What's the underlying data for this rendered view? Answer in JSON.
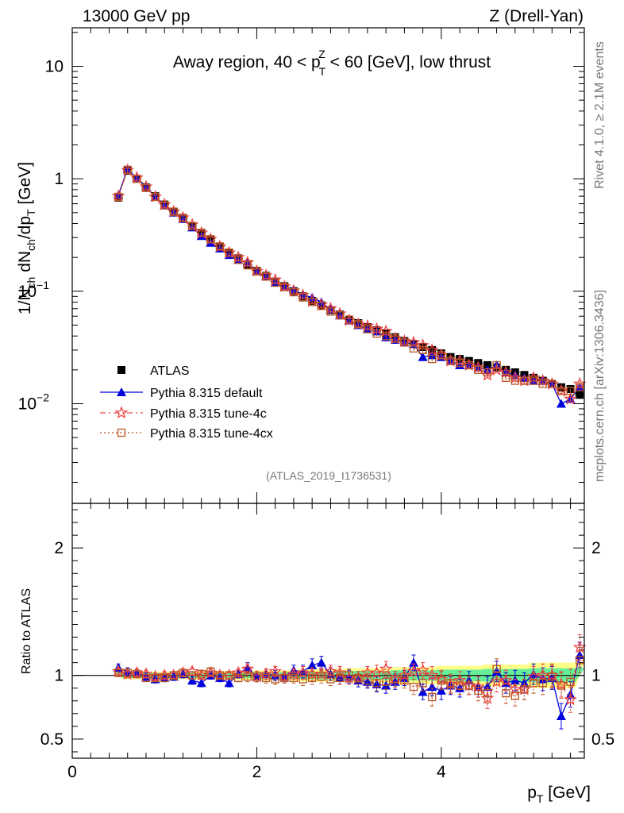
{
  "header": {
    "left": "13000 GeV pp",
    "right": "Z (Drell-Yan)"
  },
  "side_labels": {
    "rivet": "Rivet 4.1.0, ≥ 2.1M events",
    "mcplots": "mcplots.cern.ch [arXiv:1306.3436]"
  },
  "main_title": {
    "pre": "Away region, 40 < p",
    "sup": "Z",
    "sub": "T",
    "post": " < 60 [GeV], low thrust"
  },
  "analysis_id": "(ATLAS_2019_I1736531)",
  "colors": {
    "data": "#000000",
    "default": "#0000dd",
    "tune4c": "#ee4444",
    "tune4cx": "#bb5522",
    "band_inner": "#66ee99",
    "band_outer": "#ffff88"
  },
  "chart_data": [
    {
      "type": "line",
      "role": "main",
      "title": "Away region, 40 < pT^Z < 60 [GeV], low thrust",
      "xlabel": "p_T [GeV]",
      "ylabel": "1/N_ch dN_ch/dp_T [GeV]",
      "yscale": "log",
      "xlim": [
        0,
        5.55
      ],
      "ylim": [
        0.0013,
        22
      ],
      "y_ticks": [
        {
          "v": 10,
          "m": "10",
          "e": ""
        },
        {
          "v": 1,
          "m": "1",
          "e": ""
        },
        {
          "v": 0.1,
          "m": "10",
          "e": "−1"
        },
        {
          "v": 0.01,
          "m": "10",
          "e": "−2"
        }
      ],
      "x": [
        0.5,
        0.6,
        0.7,
        0.8,
        0.9,
        1.0,
        1.1,
        1.2,
        1.3,
        1.4,
        1.5,
        1.6,
        1.7,
        1.8,
        1.9,
        2.0,
        2.1,
        2.2,
        2.3,
        2.4,
        2.5,
        2.6,
        2.7,
        2.8,
        2.9,
        3.0,
        3.1,
        3.2,
        3.3,
        3.4,
        3.5,
        3.6,
        3.7,
        3.8,
        3.9,
        4.0,
        4.1,
        4.2,
        4.3,
        4.4,
        4.5,
        4.6,
        4.7,
        4.8,
        4.9,
        5.0,
        5.1,
        5.2,
        5.3,
        5.4,
        5.5
      ],
      "series": [
        {
          "name": "ATLAS",
          "style": "data",
          "values": [
            0.68,
            1.18,
            1.0,
            0.84,
            0.7,
            0.59,
            0.51,
            0.44,
            0.38,
            0.33,
            0.285,
            0.25,
            0.22,
            0.196,
            0.172,
            0.152,
            0.137,
            0.122,
            0.111,
            0.1,
            0.09,
            0.082,
            0.075,
            0.068,
            0.062,
            0.056,
            0.052,
            0.048,
            0.045,
            0.042,
            0.039,
            0.036,
            0.034,
            0.032,
            0.03,
            0.028,
            0.026,
            0.025,
            0.024,
            0.023,
            0.022,
            0.021,
            0.02,
            0.019,
            0.018,
            0.017,
            0.016,
            0.015,
            0.014,
            0.0135,
            0.012
          ]
        },
        {
          "name": "Pythia 8.315 default",
          "style": "default",
          "values": [
            0.72,
            1.22,
            1.01,
            0.86,
            0.69,
            0.58,
            0.5,
            0.44,
            0.37,
            0.31,
            0.27,
            0.24,
            0.21,
            0.19,
            0.18,
            0.15,
            0.136,
            0.12,
            0.109,
            0.104,
            0.093,
            0.088,
            0.08,
            0.069,
            0.061,
            0.055,
            0.05,
            0.046,
            0.044,
            0.039,
            0.037,
            0.035,
            0.034,
            0.026,
            0.027,
            0.026,
            0.024,
            0.022,
            0.022,
            0.021,
            0.02,
            0.022,
            0.019,
            0.018,
            0.017,
            0.016,
            0.016,
            0.015,
            0.01,
            0.011,
            0.014
          ]
        },
        {
          "name": "Pythia 8.315 tune-4c",
          "style": "tune4c",
          "values": [
            0.7,
            1.19,
            1.02,
            0.85,
            0.69,
            0.59,
            0.51,
            0.45,
            0.39,
            0.33,
            0.29,
            0.25,
            0.22,
            0.2,
            0.18,
            0.151,
            0.138,
            0.126,
            0.11,
            0.101,
            0.092,
            0.083,
            0.076,
            0.07,
            0.063,
            0.055,
            0.051,
            0.049,
            0.046,
            0.044,
            0.038,
            0.036,
            0.035,
            0.033,
            0.03,
            0.027,
            0.024,
            0.024,
            0.022,
            0.021,
            0.018,
            0.02,
            0.019,
            0.017,
            0.016,
            0.017,
            0.016,
            0.015,
            0.013,
            0.011,
            0.015
          ]
        },
        {
          "name": "Pythia 8.315 tune-4cx",
          "style": "tune4cx",
          "values": [
            0.69,
            1.2,
            1.0,
            0.83,
            0.69,
            0.58,
            0.51,
            0.45,
            0.38,
            0.33,
            0.29,
            0.25,
            0.22,
            0.19,
            0.17,
            0.15,
            0.135,
            0.119,
            0.109,
            0.098,
            0.088,
            0.08,
            0.074,
            0.066,
            0.061,
            0.056,
            0.051,
            0.046,
            0.042,
            0.04,
            0.038,
            0.035,
            0.031,
            0.03,
            0.025,
            0.027,
            0.024,
            0.023,
            0.022,
            0.02,
            0.019,
            0.022,
            0.017,
            0.016,
            0.016,
            0.016,
            0.015,
            0.015,
            0.013,
            0.013,
            0.014
          ]
        }
      ],
      "legend": [
        "ATLAS",
        "Pythia 8.315 default",
        "Pythia 8.315 tune-4c",
        "Pythia 8.315 tune-4cx"
      ],
      "legend_position": "lower-left"
    },
    {
      "type": "line",
      "role": "ratio",
      "ylabel": "Ratio to ATLAS",
      "xlabel": "p_T [GeV]",
      "xlim": [
        0,
        5.55
      ],
      "ylim": [
        0.35,
        2.35
      ],
      "y_ticks": [
        0.5,
        1,
        2
      ],
      "x_ticks": [
        0,
        2,
        4
      ],
      "x_tick_labels": [
        "0",
        "2",
        "4"
      ],
      "x": [
        0.5,
        0.6,
        0.7,
        0.8,
        0.9,
        1.0,
        1.1,
        1.2,
        1.3,
        1.4,
        1.5,
        1.6,
        1.7,
        1.8,
        1.9,
        2.0,
        2.1,
        2.2,
        2.3,
        2.4,
        2.5,
        2.6,
        2.7,
        2.8,
        2.9,
        3.0,
        3.1,
        3.2,
        3.3,
        3.4,
        3.5,
        3.6,
        3.7,
        3.8,
        3.9,
        4.0,
        4.1,
        4.2,
        4.3,
        4.4,
        4.5,
        4.6,
        4.7,
        4.8,
        4.9,
        5.0,
        5.1,
        5.2,
        5.3,
        5.4,
        5.5
      ],
      "band_inner": [
        0.02,
        0.02,
        0.02,
        0.02,
        0.02,
        0.02,
        0.02,
        0.02,
        0.02,
        0.02,
        0.02,
        0.02,
        0.02,
        0.02,
        0.02,
        0.025,
        0.025,
        0.025,
        0.025,
        0.025,
        0.03,
        0.03,
        0.03,
        0.03,
        0.03,
        0.035,
        0.035,
        0.035,
        0.035,
        0.035,
        0.04,
        0.04,
        0.04,
        0.04,
        0.04,
        0.045,
        0.045,
        0.045,
        0.045,
        0.045,
        0.05,
        0.05,
        0.05,
        0.05,
        0.05,
        0.055,
        0.055,
        0.055,
        0.055,
        0.055,
        0.055
      ],
      "band_outer": [
        0.03,
        0.03,
        0.03,
        0.03,
        0.03,
        0.03,
        0.03,
        0.03,
        0.03,
        0.03,
        0.035,
        0.035,
        0.035,
        0.035,
        0.035,
        0.04,
        0.04,
        0.04,
        0.04,
        0.04,
        0.05,
        0.05,
        0.05,
        0.05,
        0.05,
        0.055,
        0.055,
        0.055,
        0.055,
        0.055,
        0.065,
        0.065,
        0.065,
        0.065,
        0.065,
        0.075,
        0.075,
        0.075,
        0.075,
        0.075,
        0.085,
        0.085,
        0.085,
        0.085,
        0.085,
        0.1,
        0.1,
        0.1,
        0.1,
        0.1,
        0.1
      ],
      "series": [
        {
          "name": "Pythia 8.315 default",
          "style": "default",
          "values": [
            1.06,
            1.03,
            1.02,
            0.99,
            0.97,
            0.98,
            0.99,
            1.01,
            0.96,
            0.94,
            1.0,
            0.98,
            0.94,
            1.01,
            1.06,
            0.99,
            1.01,
            1.0,
            0.99,
            1.04,
            1.03,
            1.08,
            1.1,
            1.01,
            0.98,
            0.99,
            0.96,
            0.95,
            0.93,
            0.92,
            0.95,
            0.98,
            1.1,
            0.87,
            0.91,
            0.88,
            0.92,
            0.9,
            0.96,
            0.91,
            0.91,
            1.03,
            0.94,
            0.96,
            0.94,
            1.01,
            0.97,
            0.98,
            0.68,
            0.85,
            1.16
          ],
          "err": [
            0.03,
            0.03,
            0.03,
            0.03,
            0.03,
            0.03,
            0.03,
            0.03,
            0.03,
            0.03,
            0.03,
            0.03,
            0.03,
            0.03,
            0.04,
            0.04,
            0.04,
            0.04,
            0.04,
            0.04,
            0.05,
            0.05,
            0.05,
            0.05,
            0.05,
            0.05,
            0.05,
            0.05,
            0.06,
            0.06,
            0.06,
            0.06,
            0.06,
            0.06,
            0.07,
            0.07,
            0.07,
            0.07,
            0.07,
            0.08,
            0.08,
            0.08,
            0.08,
            0.08,
            0.08,
            0.08,
            0.09,
            0.09,
            0.1,
            0.1,
            0.1
          ]
        },
        {
          "name": "Pythia 8.315 tune-4c",
          "style": "tune4c",
          "values": [
            1.03,
            1.01,
            1.02,
            1.01,
            0.99,
            1.0,
            1.0,
            1.02,
            1.03,
            1.0,
            1.02,
            1.0,
            1.0,
            1.02,
            1.05,
            0.99,
            1.01,
            1.03,
            0.99,
            1.01,
            1.02,
            1.01,
            1.01,
            1.03,
            1.02,
            0.98,
            0.98,
            1.02,
            1.02,
            1.05,
            0.97,
            1.0,
            1.03,
            1.04,
            1.0,
            0.97,
            0.93,
            0.96,
            0.92,
            0.91,
            0.82,
            0.95,
            0.96,
            0.89,
            0.89,
            0.99,
            1.0,
            1.0,
            0.93,
            0.81,
            1.22
          ],
          "err": [
            0.03,
            0.03,
            0.03,
            0.03,
            0.03,
            0.03,
            0.03,
            0.03,
            0.03,
            0.03,
            0.03,
            0.03,
            0.03,
            0.03,
            0.04,
            0.04,
            0.04,
            0.04,
            0.04,
            0.04,
            0.05,
            0.05,
            0.05,
            0.05,
            0.05,
            0.05,
            0.05,
            0.05,
            0.06,
            0.06,
            0.06,
            0.06,
            0.06,
            0.06,
            0.07,
            0.07,
            0.07,
            0.07,
            0.07,
            0.08,
            0.08,
            0.08,
            0.08,
            0.08,
            0.08,
            0.08,
            0.09,
            0.09,
            0.1,
            0.1,
            0.1
          ]
        },
        {
          "name": "Pythia 8.315 tune-4cx",
          "style": "tune4cx",
          "values": [
            1.02,
            1.02,
            1.01,
            0.98,
            0.98,
            0.98,
            1.0,
            1.02,
            1.0,
            1.01,
            1.03,
            1.0,
            1.0,
            0.98,
            0.99,
            0.99,
            0.98,
            0.97,
            0.98,
            0.98,
            0.97,
            0.98,
            0.99,
            0.97,
            0.98,
            1.0,
            0.98,
            0.96,
            0.94,
            0.95,
            0.97,
            0.96,
            0.91,
            0.94,
            0.83,
            0.96,
            0.94,
            0.92,
            0.92,
            0.88,
            0.86,
            1.05,
            0.86,
            0.84,
            0.89,
            0.94,
            0.94,
            0.99,
            0.92,
            0.95,
            1.12
          ],
          "err": [
            0.03,
            0.03,
            0.03,
            0.03,
            0.03,
            0.03,
            0.03,
            0.03,
            0.03,
            0.03,
            0.03,
            0.03,
            0.03,
            0.03,
            0.04,
            0.04,
            0.04,
            0.04,
            0.04,
            0.04,
            0.05,
            0.05,
            0.05,
            0.05,
            0.05,
            0.05,
            0.05,
            0.05,
            0.06,
            0.06,
            0.06,
            0.06,
            0.06,
            0.06,
            0.07,
            0.07,
            0.07,
            0.07,
            0.07,
            0.08,
            0.08,
            0.08,
            0.08,
            0.08,
            0.08,
            0.08,
            0.09,
            0.09,
            0.1,
            0.1,
            0.1
          ]
        }
      ]
    }
  ]
}
